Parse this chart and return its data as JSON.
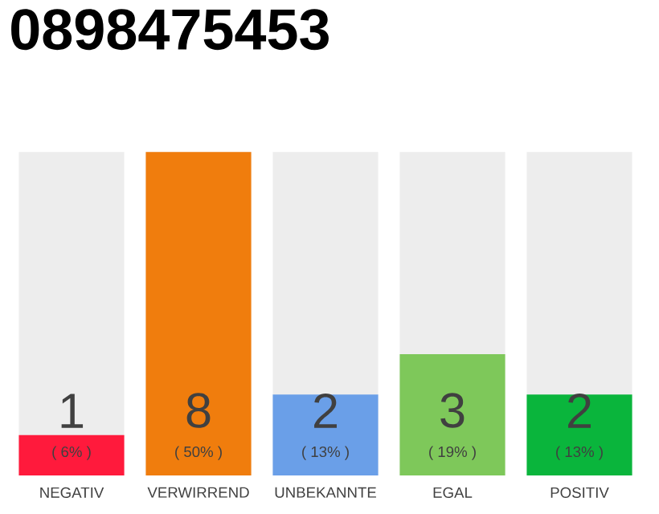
{
  "chart_data": {
    "type": "bar",
    "title": "0898475453",
    "categories": [
      "NEGATIV",
      "VERWIRREND",
      "UNBEKANNTE",
      "EGAL",
      "POSITIV"
    ],
    "values": [
      1,
      8,
      2,
      3,
      2
    ],
    "colors": [
      "#ff1a3c",
      "#f07d0d",
      "#6a9fe8",
      "#7ec85a",
      "#0ab53c"
    ],
    "ylim": [
      0,
      8
    ],
    "tick_labels": "x",
    "data_labels": true,
    "annotations": [
      "( 6% )",
      "( 50% )",
      "( 13% )",
      "( 19% )",
      "( 13% )"
    ]
  }
}
